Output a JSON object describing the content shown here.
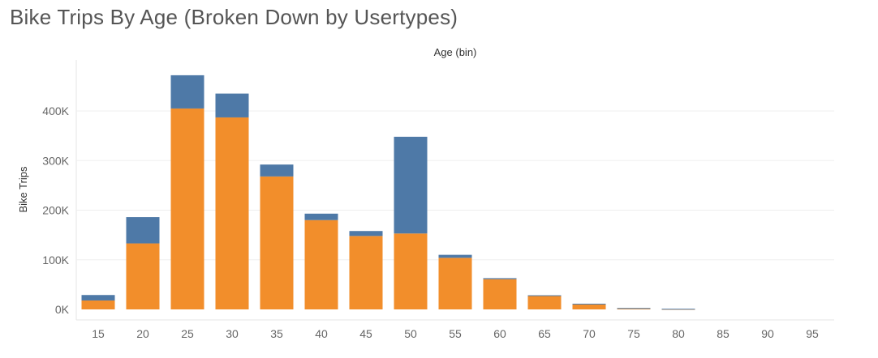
{
  "chart_data": {
    "type": "bar",
    "stacked": true,
    "title": "Bike Trips By Age (Broken Down by Usertypes)",
    "xlabel": "Age (bin)",
    "ylabel": "Bike Trips",
    "ylim": [
      -20000,
      500000
    ],
    "y_ticks": [
      0,
      100000,
      200000,
      300000,
      400000
    ],
    "y_tick_labels": [
      "0K",
      "100K",
      "200K",
      "300K",
      "400K"
    ],
    "grid": true,
    "legend": "none",
    "categories": [
      "15",
      "20",
      "25",
      "30",
      "35",
      "40",
      "45",
      "50",
      "55",
      "60",
      "65",
      "70",
      "75",
      "80",
      "85",
      "90",
      "95"
    ],
    "series": [
      {
        "color": "#f28e2b",
        "values": [
          18000,
          133000,
          405000,
          387000,
          268000,
          180000,
          148000,
          153000,
          104000,
          61000,
          27000,
          10000,
          2000,
          800,
          0,
          0,
          0
        ]
      },
      {
        "color": "#4e79a7",
        "values": [
          11000,
          53000,
          67000,
          48000,
          24000,
          13000,
          10000,
          195000,
          6000,
          2000,
          1500,
          1500,
          800,
          500,
          0,
          0,
          0
        ]
      }
    ]
  }
}
